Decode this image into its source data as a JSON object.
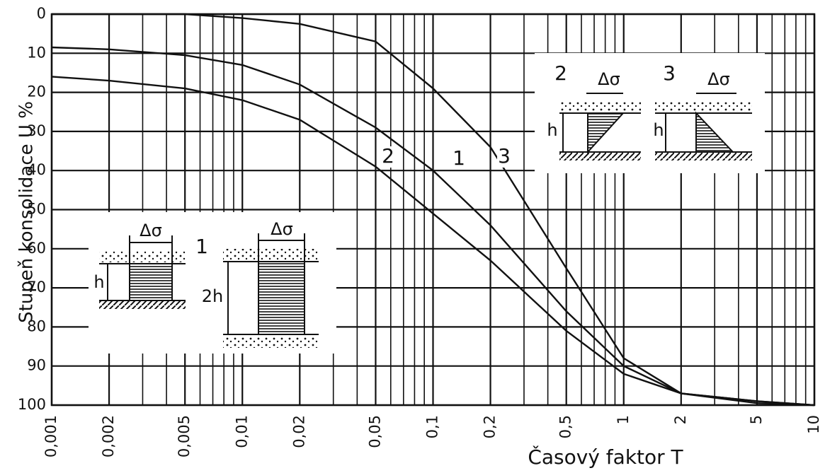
{
  "chart_data": {
    "type": "line",
    "y_label": "Stupeň konsolidace U %",
    "x_label": "Časový faktor T",
    "x_log": true,
    "y_inverted": true,
    "grid": true,
    "xlim": [
      0.001,
      10
    ],
    "ylim": [
      0,
      100
    ],
    "xticks": [
      {
        "value": 0.001,
        "label": "0,001"
      },
      {
        "value": 0.002,
        "label": "0,002"
      },
      {
        "value": 0.005,
        "label": "0,005"
      },
      {
        "value": 0.01,
        "label": "0,01"
      },
      {
        "value": 0.02,
        "label": "0,02"
      },
      {
        "value": 0.05,
        "label": "0,05"
      },
      {
        "value": 0.1,
        "label": "0,1"
      },
      {
        "value": 0.2,
        "label": "0,2"
      },
      {
        "value": 0.5,
        "label": "0,5"
      },
      1,
      2,
      5,
      10
    ],
    "xminor_ticks": [
      0.003,
      0.004,
      0.006,
      0.007,
      0.008,
      0.009,
      0.03,
      0.04,
      0.06,
      0.07,
      0.08,
      0.09,
      0.3,
      0.4,
      0.6,
      0.7,
      0.8,
      0.9,
      3,
      4,
      6,
      7,
      8,
      9
    ],
    "yticks": [
      0,
      10,
      20,
      30,
      40,
      50,
      60,
      70,
      80,
      90,
      100
    ],
    "x": [
      0.001,
      0.002,
      0.005,
      0.01,
      0.02,
      0.05,
      0.1,
      0.2,
      0.5,
      1,
      2,
      5,
      10
    ],
    "series": [
      {
        "name": "1",
        "color": "#111111",
        "values": [
          8.5,
          9,
          10.5,
          13,
          18,
          29,
          40,
          54,
          76,
          90,
          97,
          99,
          100
        ]
      },
      {
        "name": "2",
        "color": "#111111",
        "values": [
          16,
          17,
          19,
          22,
          27,
          39,
          51,
          63,
          81,
          92,
          97,
          99,
          100
        ]
      },
      {
        "name": "3",
        "color": "#111111",
        "values": [
          0,
          0,
          0,
          1,
          2.5,
          7,
          19,
          34,
          65,
          88,
          97,
          99.5,
          100
        ]
      }
    ],
    "insets": [
      {
        "label": "1",
        "panels": [
          {
            "load": "Δσ",
            "height": "h"
          },
          {
            "load": "Δσ",
            "height": "2h"
          }
        ]
      },
      {
        "panels": [
          {
            "label": "2",
            "load": "Δσ",
            "height": "h"
          },
          {
            "label": "3",
            "load": "Δσ",
            "height": "h"
          }
        ]
      }
    ]
  }
}
